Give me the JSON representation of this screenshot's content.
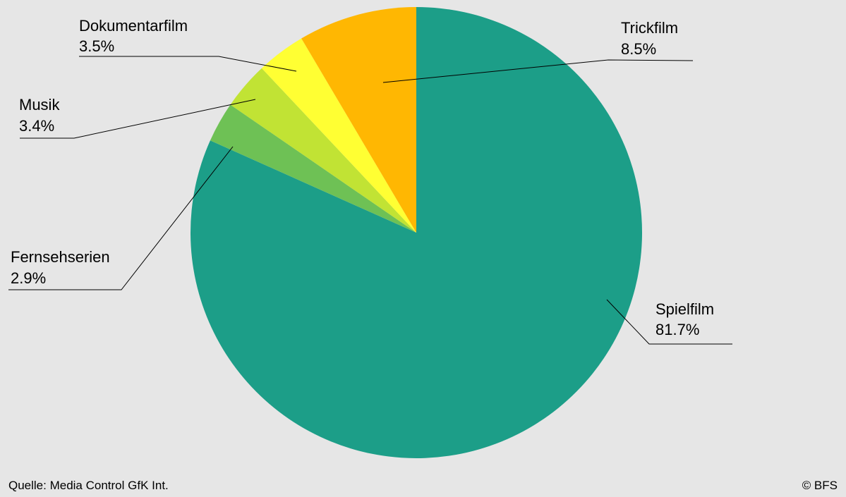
{
  "chart_data": {
    "type": "pie",
    "slices": [
      {
        "label": "Spielfilm",
        "value_text": "81.7%",
        "value": 81.7,
        "color": "#1c9e88"
      },
      {
        "label": "Fernsehserien",
        "value_text": "2.9%",
        "value": 2.9,
        "color": "#6ec155"
      },
      {
        "label": "Musik",
        "value_text": "3.4%",
        "value": 3.4,
        "color": "#c1e334"
      },
      {
        "label": "Dokumentarfilm",
        "value_text": "3.5%",
        "value": 3.5,
        "color": "#ffff33"
      },
      {
        "label": "Trickfilm",
        "value_text": "8.5%",
        "value": 8.5,
        "color": "#ffb702"
      }
    ]
  },
  "footer": {
    "source": "Quelle: Media Control GfK Int.",
    "copyright": "© BFS"
  }
}
